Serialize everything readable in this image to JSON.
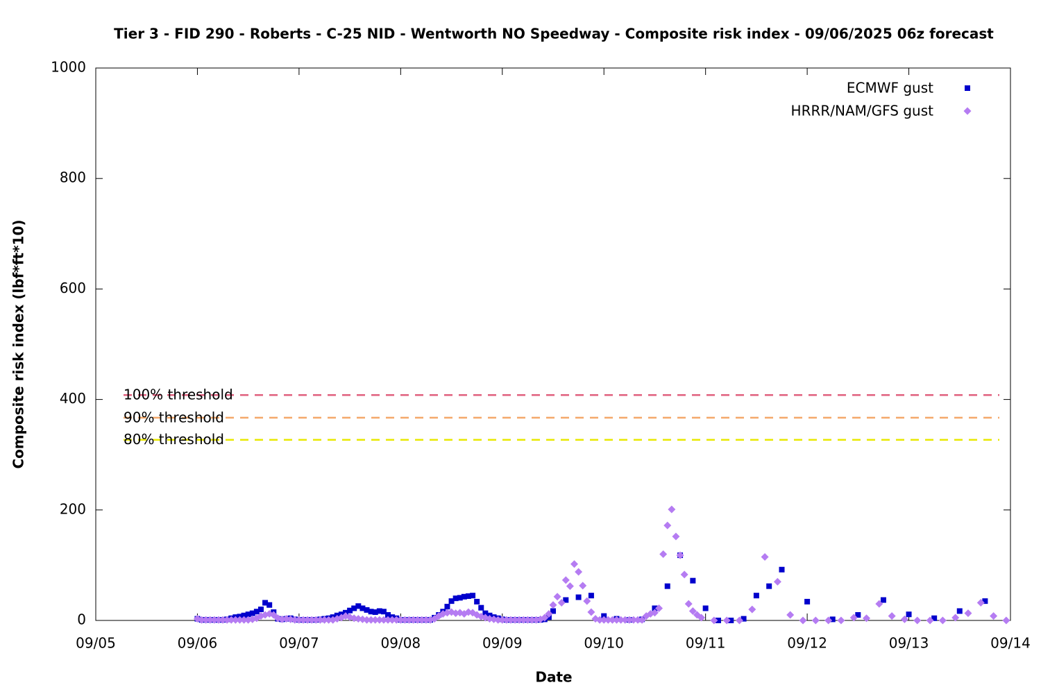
{
  "chart_data": {
    "type": "scatter",
    "title": "Tier 3 - FID 290 - Roberts - C-25 NID - Wentworth NO Speedway - Composite risk index - 09/06/2025 06z forecast",
    "x_label": "Date",
    "y_label": "Composite risk index (lbf*ft*10)",
    "xlim": [
      0,
      216
    ],
    "xticks": [
      {
        "value": 0,
        "label": "09/05"
      },
      {
        "value": 24,
        "label": "09/06"
      },
      {
        "value": 48,
        "label": "09/07"
      },
      {
        "value": 72,
        "label": "09/08"
      },
      {
        "value": 96,
        "label": "09/09"
      },
      {
        "value": 120,
        "label": "09/10"
      },
      {
        "value": 144,
        "label": "09/11"
      },
      {
        "value": 168,
        "label": "09/12"
      },
      {
        "value": 192,
        "label": "09/13"
      },
      {
        "value": 216,
        "label": "09/14"
      }
    ],
    "ylim": [
      0,
      1000
    ],
    "yticks": [
      0,
      200,
      400,
      600,
      800,
      1000
    ],
    "legend": "top-right",
    "thresholds": [
      {
        "name": "100% threshold",
        "value": 408,
        "color": "#e0607e"
      },
      {
        "name": "90% threshold",
        "value": 367,
        "color": "#f4a86a"
      },
      {
        "name": "80% threshold",
        "value": 327,
        "color": "#e8e800"
      }
    ],
    "series": [
      {
        "name": "ECMWF gust",
        "color": "#0000cc",
        "marker": "square",
        "x": [
          24,
          25,
          26,
          27,
          28,
          29,
          30,
          31,
          32,
          33,
          34,
          35,
          36,
          37,
          38,
          39,
          40,
          41,
          42,
          43,
          44,
          45,
          46,
          47,
          48,
          49,
          50,
          51,
          52,
          53,
          54,
          55,
          56,
          57,
          58,
          59,
          60,
          61,
          62,
          63,
          64,
          65,
          66,
          67,
          68,
          69,
          70,
          71,
          72,
          73,
          74,
          75,
          76,
          77,
          78,
          79,
          80,
          81,
          82,
          83,
          84,
          85,
          86,
          87,
          88,
          89,
          90,
          91,
          92,
          93,
          94,
          95,
          96,
          97,
          98,
          99,
          100,
          101,
          102,
          103,
          104,
          105,
          106,
          107,
          108,
          111,
          114,
          117,
          120,
          123,
          126,
          129,
          132,
          135,
          138,
          141,
          144,
          147,
          150,
          153,
          156,
          159,
          162,
          168,
          174,
          180,
          186,
          192,
          198,
          204,
          210
        ],
        "values": [
          3,
          1,
          1,
          1,
          1,
          1,
          1,
          2,
          4,
          6,
          7,
          9,
          11,
          13,
          16,
          20,
          32,
          28,
          15,
          3,
          2,
          3,
          4,
          2,
          1,
          1,
          1,
          1,
          1,
          2,
          3,
          4,
          6,
          9,
          11,
          14,
          18,
          22,
          26,
          22,
          19,
          16,
          15,
          17,
          16,
          10,
          6,
          4,
          1,
          1,
          1,
          1,
          1,
          1,
          1,
          1,
          5,
          10,
          16,
          25,
          35,
          40,
          41,
          43,
          44,
          45,
          34,
          23,
          13,
          9,
          6,
          4,
          2,
          1,
          1,
          1,
          1,
          1,
          1,
          1,
          1,
          1,
          2,
          6,
          17,
          37,
          42,
          45,
          8,
          3,
          1,
          2,
          22,
          62,
          118,
          72,
          22,
          0,
          0,
          3,
          45,
          62,
          92,
          34,
          2,
          10,
          37,
          11,
          4,
          17,
          35
        ]
      },
      {
        "name": "HRRR/NAM/GFS gust",
        "color": "#b57cf2",
        "marker": "diamond",
        "x": [
          24,
          25,
          26,
          27,
          28,
          29,
          30,
          31,
          32,
          33,
          34,
          35,
          36,
          37,
          38,
          39,
          40,
          41,
          42,
          43,
          44,
          45,
          46,
          47,
          48,
          49,
          50,
          51,
          52,
          53,
          54,
          55,
          56,
          57,
          58,
          59,
          60,
          61,
          62,
          63,
          64,
          65,
          66,
          67,
          68,
          69,
          70,
          71,
          72,
          73,
          74,
          75,
          76,
          77,
          78,
          79,
          80,
          81,
          82,
          83,
          84,
          85,
          86,
          87,
          88,
          89,
          90,
          91,
          92,
          93,
          94,
          95,
          96,
          97,
          98,
          99,
          100,
          101,
          102,
          103,
          104,
          105,
          106,
          107,
          108,
          109,
          110,
          111,
          112,
          113,
          114,
          115,
          116,
          117,
          118,
          119,
          120,
          121,
          122,
          123,
          124,
          125,
          126,
          127,
          128,
          129,
          130,
          131,
          132,
          133,
          134,
          135,
          136,
          137,
          138,
          139,
          140,
          141,
          142,
          143,
          146,
          149,
          152,
          155,
          158,
          161,
          164,
          167,
          170,
          173,
          176,
          179,
          182,
          185,
          188,
          191,
          194,
          197,
          200,
          203,
          206,
          209,
          212,
          215
        ],
        "values": [
          3,
          1,
          1,
          1,
          1,
          1,
          1,
          1,
          1,
          1,
          1,
          1,
          1,
          2,
          4,
          8,
          10,
          12,
          10,
          4,
          2,
          3,
          2,
          1,
          1,
          1,
          1,
          1,
          1,
          1,
          1,
          1,
          1,
          3,
          5,
          8,
          6,
          4,
          3,
          2,
          1,
          1,
          1,
          1,
          1,
          1,
          1,
          1,
          1,
          1,
          1,
          1,
          1,
          1,
          1,
          1,
          3,
          8,
          12,
          14,
          15,
          13,
          14,
          12,
          15,
          14,
          10,
          7,
          5,
          3,
          2,
          1,
          1,
          1,
          1,
          1,
          1,
          1,
          1,
          1,
          1,
          2,
          5,
          12,
          28,
          43,
          32,
          73,
          62,
          102,
          88,
          63,
          35,
          15,
          3,
          1,
          1,
          1,
          1,
          1,
          1,
          1,
          1,
          1,
          1,
          1,
          8,
          12,
          14,
          22,
          120,
          172,
          201,
          152,
          118,
          83,
          30,
          17,
          10,
          5,
          0,
          0,
          0,
          20,
          115,
          70,
          10,
          0,
          0,
          0,
          0,
          5,
          4,
          30,
          8,
          2,
          0,
          0,
          0,
          5,
          13,
          32,
          8,
          0
        ]
      }
    ]
  }
}
